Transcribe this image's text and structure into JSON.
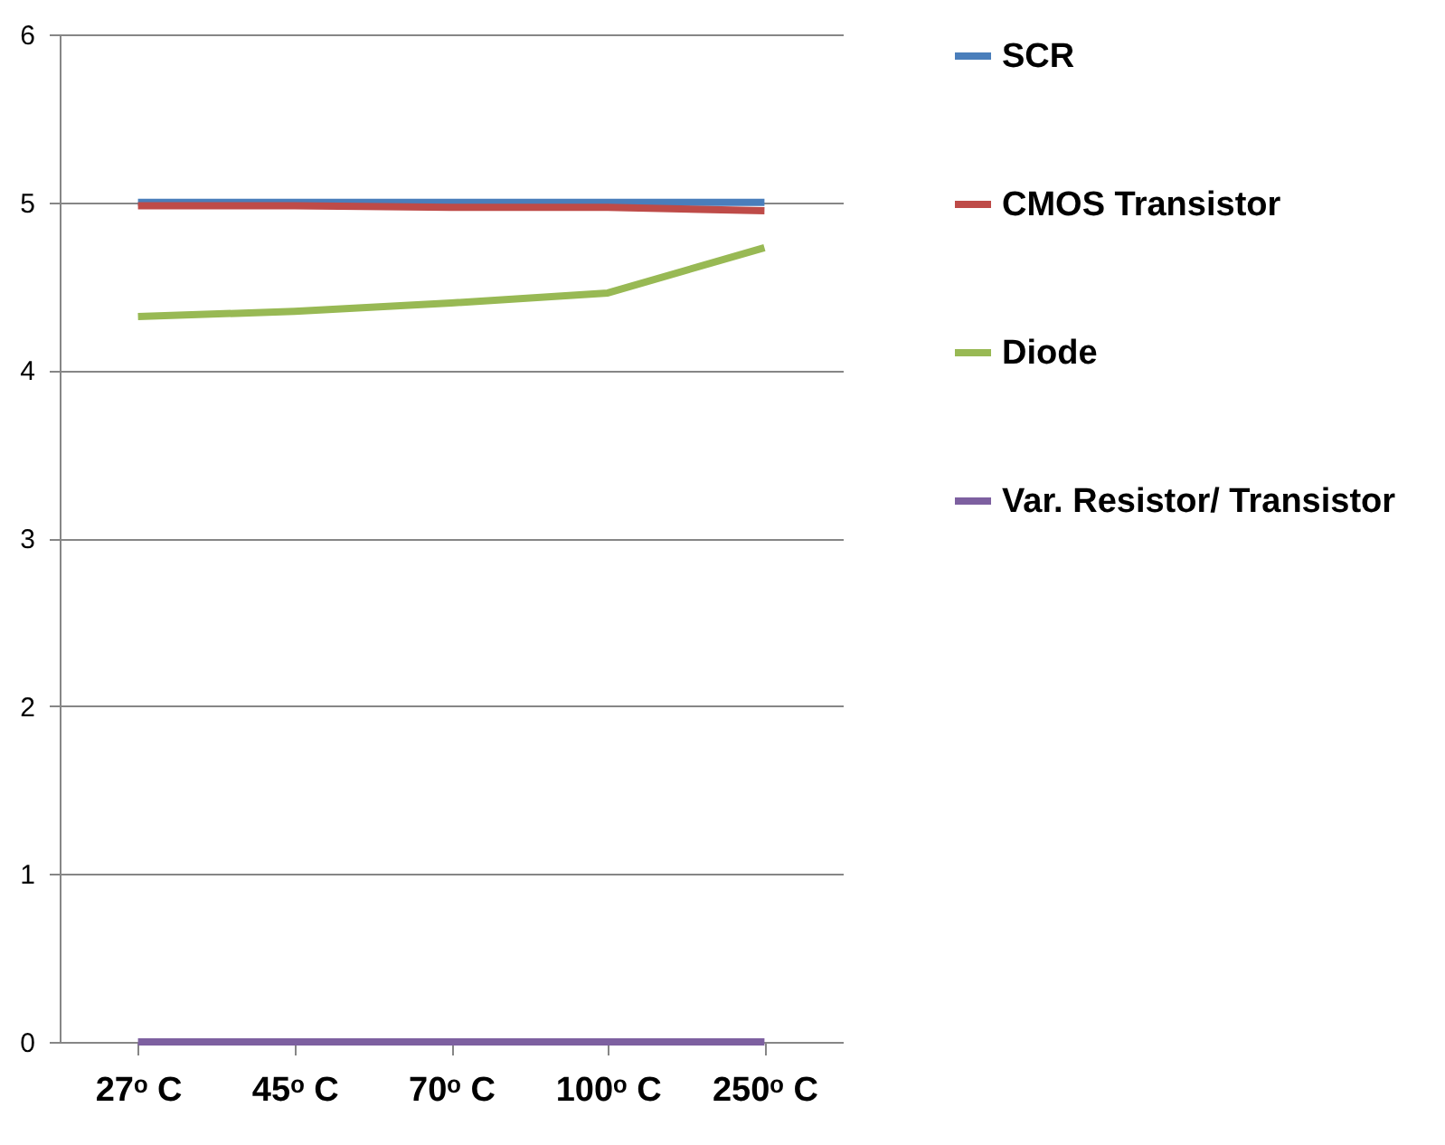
{
  "chart_data": {
    "type": "line",
    "categories": [
      "27ᵒ C",
      "45ᵒ C",
      "70ᵒ C",
      "100ᵒ C",
      "250ᵒ C"
    ],
    "series": [
      {
        "name": "SCR",
        "color": "#4a7ebb",
        "values": [
          5,
          5,
          5,
          5,
          5
        ]
      },
      {
        "name": "CMOS Transistor",
        "color": "#be4b48",
        "values": [
          4.98,
          4.98,
          4.97,
          4.97,
          4.95
        ]
      },
      {
        "name": "Diode",
        "color": "#98b954",
        "values": [
          4.32,
          4.35,
          4.4,
          4.46,
          4.73
        ]
      },
      {
        "name": "Var. Resistor/ Transistor",
        "color": "#7d60a0",
        "values": [
          0,
          0,
          0,
          0,
          0
        ]
      }
    ],
    "ylim": [
      0,
      6
    ],
    "yticks": [
      0,
      1,
      2,
      3,
      4,
      5,
      6
    ],
    "grid": "y",
    "legend": "right",
    "marker": "none",
    "line_style": "solid"
  }
}
